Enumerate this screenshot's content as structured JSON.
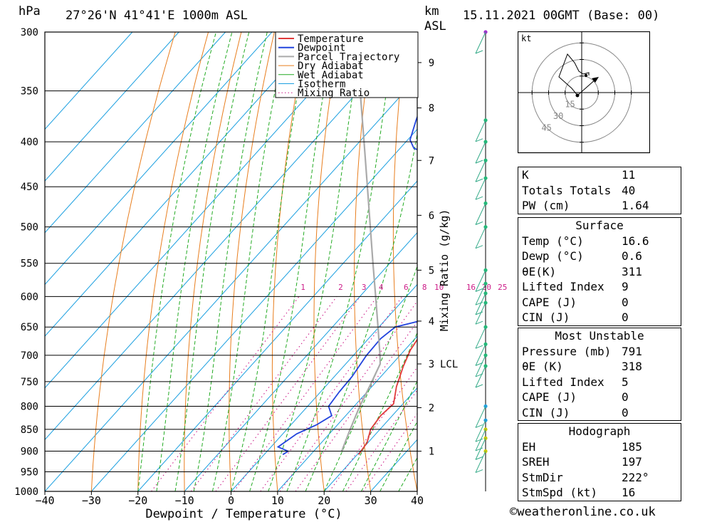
{
  "header": {
    "pressure_unit": "hPa",
    "location": "27°26'N  41°41'E  1000m  ASL",
    "km_label": "km",
    "asl_label": "ASL",
    "datetime": "15.11.2021  00GMT  (Base: 00)"
  },
  "copyright": "©weatheronline.co.uk",
  "colors": {
    "temperature": "#e03a3a",
    "dewpoint": "#2244dd",
    "parcel": "#aaaaaa",
    "dry_adiabat": "#e87e1e",
    "wet_adiabat": "#22aa22",
    "isotherm": "#1a9fe0",
    "mixing_ratio": "#cc1c88"
  },
  "chart_data": [
    {
      "type": "line",
      "subtype": "skew-T log-P",
      "xlabel": "Dewpoint / Temperature (°C)",
      "x_ticks": [
        -40,
        -30,
        -20,
        -10,
        0,
        10,
        20,
        30,
        40
      ],
      "xlim": [
        -40,
        40
      ],
      "ylabel_left": "hPa",
      "pressure_ticks": [
        300,
        350,
        400,
        450,
        500,
        550,
        600,
        650,
        700,
        750,
        800,
        850,
        900,
        950,
        1000
      ],
      "ylim": [
        1000,
        300
      ],
      "height_ticks": [
        {
          "label": "1",
          "p": 900
        },
        {
          "label": "2",
          "p": 803
        },
        {
          "label": "3",
          "p": 716
        },
        {
          "label": "4",
          "p": 640
        },
        {
          "label": "5",
          "p": 560
        },
        {
          "label": "6",
          "p": 485
        },
        {
          "label": "7",
          "p": 420
        },
        {
          "label": "8",
          "p": 366
        },
        {
          "label": "9",
          "p": 325
        }
      ],
      "lcl_label": "LCL",
      "lcl_pressure": 716,
      "mixing_ratio_axis_label": "Mixing Ratio (g/kg)",
      "mixing_ratio_values": [
        "1",
        "2",
        "3",
        "4",
        "6",
        "8",
        "10",
        "16",
        "20",
        "25"
      ],
      "mixing_ratio_label_pressure": 592,
      "legend": [
        "Temperature",
        "Dewpoint",
        "Parcel Trajectory",
        "Dry Adiabat",
        "Wet Adiabat",
        "Isotherm",
        "Mixing Ratio"
      ],
      "legend_position": "top-right",
      "series": [
        {
          "name": "Temperature",
          "points": [
            [
              908,
              20.3
            ],
            [
              880,
              19.8
            ],
            [
              850,
              18.0
            ],
            [
              820,
              17.5
            ],
            [
              795,
              18.0
            ],
            [
              760,
              15.3
            ],
            [
              720,
              12.8
            ],
            [
              690,
              11.2
            ],
            [
              650,
              10.0
            ],
            [
              630,
              10.0
            ],
            [
              600,
              8.5
            ],
            [
              575,
              7.2
            ],
            [
              550,
              6.0
            ],
            [
              530,
              5.2
            ],
            [
              510,
              4.0
            ],
            [
              490,
              3.0
            ],
            [
              470,
              2.2
            ],
            [
              452,
              1.0
            ],
            [
              440,
              -0.5
            ],
            [
              434,
              -1.5
            ],
            [
              425,
              0.2
            ],
            [
              410,
              -0.3
            ],
            [
              395,
              -1.8
            ],
            [
              370,
              -4.0
            ],
            [
              350,
              -6.5
            ],
            [
              330,
              -9.5
            ],
            [
              315,
              -12.0
            ],
            [
              300,
              -14.0
            ]
          ]
        },
        {
          "name": "Dewpoint",
          "points": [
            [
              908,
              4.0
            ],
            [
              900,
              4.5
            ],
            [
              890,
              1.5
            ],
            [
              860,
              3.0
            ],
            [
              840,
              5.5
            ],
            [
              820,
              7.0
            ],
            [
              800,
              4.5
            ],
            [
              770,
              4.0
            ],
            [
              740,
              3.8
            ],
            [
              700,
              2.8
            ],
            [
              670,
              2.6
            ],
            [
              650,
              3.5
            ],
            [
              640,
              7.5
            ],
            [
              630,
              12.0
            ],
            [
              600,
              12.0
            ],
            [
              575,
              11.0
            ],
            [
              555,
              9.5
            ],
            [
              542,
              8.0
            ],
            [
              520,
              7.6
            ],
            [
              500,
              5.5
            ],
            [
              478,
              3.5
            ],
            [
              470,
              -0.3
            ],
            [
              450,
              -0.5
            ],
            [
              435,
              -1.5
            ],
            [
              430,
              -4.0
            ],
            [
              427,
              -7.0
            ],
            [
              420,
              -17.0
            ],
            [
              407,
              -27.0
            ],
            [
              398,
              -29.5
            ],
            [
              378,
              -32.0
            ],
            [
              345,
              -36.0
            ],
            [
              320,
              -40.0
            ],
            [
              313,
              -44.0
            ],
            [
              306,
              -46.0
            ],
            [
              300,
              -45.0
            ]
          ]
        },
        {
          "name": "Parcel Trajectory",
          "points": [
            [
              900,
              16.0
            ],
            [
              850,
              13.6
            ],
            [
              800,
              11.2
            ],
            [
              760,
              9.5
            ],
            [
              716,
              7.4
            ],
            [
              700,
              5.7
            ],
            [
              650,
              -0.2
            ],
            [
              600,
              -6.6
            ],
            [
              550,
              -13.6
            ],
            [
              500,
              -21.2
            ],
            [
              450,
              -29.6
            ],
            [
              400,
              -39.0
            ],
            [
              350,
              -49.7
            ],
            [
              330,
              -54.0
            ],
            [
              310,
              -58.6
            ]
          ]
        }
      ]
    },
    {
      "type": "line",
      "subtype": "hodograph",
      "unit_label": "kt",
      "ring_labels": [
        "15",
        "30",
        "45"
      ],
      "ring_values_kt": [
        15,
        30,
        45
      ]
    }
  ],
  "indices": [
    {
      "label": "K",
      "value": "11"
    },
    {
      "label": "Totals Totals",
      "value": "40"
    },
    {
      "label": "PW (cm)",
      "value": "1.64"
    }
  ],
  "surface": {
    "title": "Surface",
    "rows": [
      {
        "label": "Temp (°C)",
        "value": "16.6"
      },
      {
        "label": "Dewp (°C)",
        "value": "0.6"
      },
      {
        "label": "θE(K)",
        "value": "311"
      },
      {
        "label": "Lifted Index",
        "value": "9"
      },
      {
        "label": "CAPE (J)",
        "value": "0"
      },
      {
        "label": "CIN (J)",
        "value": "0"
      }
    ]
  },
  "most_unstable": {
    "title": "Most Unstable",
    "rows": [
      {
        "label": "Pressure (mb)",
        "value": "791"
      },
      {
        "label": "θE (K)",
        "value": "318"
      },
      {
        "label": "Lifted Index",
        "value": "5"
      },
      {
        "label": "CAPE (J)",
        "value": "0"
      },
      {
        "label": "CIN (J)",
        "value": "0"
      }
    ]
  },
  "hodograph_table": {
    "title": "Hodograph",
    "rows": [
      {
        "label": "EH",
        "value": "185"
      },
      {
        "label": "SREH",
        "value": "197"
      },
      {
        "label": "StmDir",
        "value": "222°"
      },
      {
        "label": "StmSpd (kt)",
        "value": "16"
      }
    ]
  }
}
